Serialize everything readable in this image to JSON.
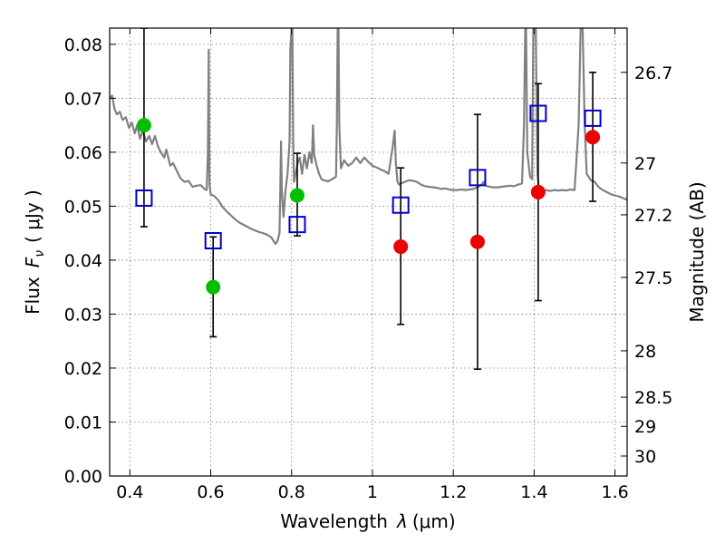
{
  "chart_data": {
    "type": "scatter",
    "title": "",
    "xlabel_prefix": "Wavelength",
    "xlabel_symbol": "λ",
    "xlabel_unit": "(μm)",
    "ylabel_prefix": "Flux",
    "ylabel_symbol": "F",
    "ylabel_subscript": "ν",
    "ylabel_unit": "( μJy )",
    "y2label": "Magnitude (AB)",
    "xlim": [
      0.35,
      1.63
    ],
    "ylim": [
      0.0,
      0.083
    ],
    "grid": true,
    "x_ticks": [
      0.4,
      0.6,
      0.8,
      1.0,
      1.2,
      1.4,
      1.6
    ],
    "x_tick_labels": [
      "0.4",
      "0.6",
      "0.8",
      "1",
      "1.2",
      "1.4",
      "1.6"
    ],
    "y_ticks": [
      0.0,
      0.01,
      0.02,
      0.03,
      0.04,
      0.05,
      0.06,
      0.07,
      0.08
    ],
    "y_tick_labels": [
      "0.00",
      "0.01",
      "0.02",
      "0.03",
      "0.04",
      "0.05",
      "0.06",
      "0.07",
      "0.08"
    ],
    "y2_ticks": [
      {
        "flux": 0.0748,
        "label": "26.7"
      },
      {
        "flux": 0.058,
        "label": "27"
      },
      {
        "flux": 0.0484,
        "label": "27.2"
      },
      {
        "flux": 0.0368,
        "label": "27.5"
      },
      {
        "flux": 0.0232,
        "label": "28"
      },
      {
        "flux": 0.0146,
        "label": "28.5"
      },
      {
        "flux": 0.0092,
        "label": "29"
      },
      {
        "flux": 0.0037,
        "label": "30"
      }
    ],
    "colors": {
      "spectrum": "#808080",
      "observed_green": "#00c000",
      "observed_red": "#ee0000",
      "model_box": "#0000cc",
      "errorbar": "#000000"
    },
    "series": [
      {
        "kind": "observed",
        "points": [
          {
            "x": 0.435,
            "y": 0.065,
            "color": "green",
            "err_low": 0.0462,
            "err_high": 0.083
          },
          {
            "x": 0.606,
            "y": 0.035,
            "color": "green",
            "err_low": 0.0258,
            "err_high": 0.0443
          },
          {
            "x": 0.814,
            "y": 0.052,
            "color": "green",
            "err_low": 0.0445,
            "err_high": 0.0598
          },
          {
            "x": 1.07,
            "y": 0.0425,
            "color": "red",
            "err_low": 0.0281,
            "err_high": 0.0571
          },
          {
            "x": 1.26,
            "y": 0.0434,
            "color": "red",
            "err_low": 0.0198,
            "err_high": 0.067
          },
          {
            "x": 1.41,
            "y": 0.0526,
            "color": "red",
            "err_low": 0.0325,
            "err_high": 0.0727
          },
          {
            "x": 1.545,
            "y": 0.0628,
            "color": "red",
            "err_low": 0.0509,
            "err_high": 0.0748
          }
        ]
      },
      {
        "kind": "model",
        "points": [
          {
            "x": 0.435,
            "y": 0.0515
          },
          {
            "x": 0.606,
            "y": 0.0436
          },
          {
            "x": 0.814,
            "y": 0.0466
          },
          {
            "x": 1.07,
            "y": 0.0502
          },
          {
            "x": 1.26,
            "y": 0.0553
          },
          {
            "x": 1.41,
            "y": 0.0672
          },
          {
            "x": 1.545,
            "y": 0.0663
          }
        ]
      },
      {
        "kind": "spectrum",
        "points": [
          [
            0.35,
            0.07
          ],
          [
            0.356,
            0.0705
          ],
          [
            0.362,
            0.068
          ],
          [
            0.368,
            0.067
          ],
          [
            0.375,
            0.0675
          ],
          [
            0.382,
            0.066
          ],
          [
            0.39,
            0.0665
          ],
          [
            0.398,
            0.0645
          ],
          [
            0.405,
            0.0655
          ],
          [
            0.412,
            0.0635
          ],
          [
            0.418,
            0.065
          ],
          [
            0.425,
            0.0625
          ],
          [
            0.432,
            0.064
          ],
          [
            0.44,
            0.062
          ],
          [
            0.448,
            0.063
          ],
          [
            0.455,
            0.0615
          ],
          [
            0.462,
            0.063
          ],
          [
            0.47,
            0.061
          ],
          [
            0.478,
            0.0598
          ],
          [
            0.485,
            0.059
          ],
          [
            0.49,
            0.0605
          ],
          [
            0.495,
            0.059
          ],
          [
            0.5,
            0.0575
          ],
          [
            0.507,
            0.058
          ],
          [
            0.515,
            0.0567
          ],
          [
            0.525,
            0.0552
          ],
          [
            0.535,
            0.0545
          ],
          [
            0.545,
            0.0547
          ],
          [
            0.555,
            0.0536
          ],
          [
            0.565,
            0.0538
          ],
          [
            0.575,
            0.0539
          ],
          [
            0.585,
            0.0532
          ],
          [
            0.59,
            0.053
          ],
          [
            0.593,
            0.06
          ],
          [
            0.595,
            0.079
          ],
          [
            0.597,
            0.054
          ],
          [
            0.6,
            0.0522
          ],
          [
            0.61,
            0.0518
          ],
          [
            0.62,
            0.051
          ],
          [
            0.63,
            0.0498
          ],
          [
            0.64,
            0.049
          ],
          [
            0.65,
            0.0483
          ],
          [
            0.66,
            0.0476
          ],
          [
            0.67,
            0.047
          ],
          [
            0.68,
            0.0466
          ],
          [
            0.69,
            0.0462
          ],
          [
            0.7,
            0.0458
          ],
          [
            0.71,
            0.0455
          ],
          [
            0.72,
            0.0452
          ],
          [
            0.73,
            0.045
          ],
          [
            0.74,
            0.0447
          ],
          [
            0.75,
            0.0442
          ],
          [
            0.76,
            0.043
          ],
          [
            0.765,
            0.0435
          ],
          [
            0.77,
            0.045
          ],
          [
            0.772,
            0.053
          ],
          [
            0.774,
            0.062
          ],
          [
            0.776,
            0.053
          ],
          [
            0.78,
            0.048
          ],
          [
            0.785,
            0.053
          ],
          [
            0.79,
            0.056
          ],
          [
            0.795,
            0.062
          ],
          [
            0.797,
            0.079
          ],
          [
            0.8,
            0.083
          ],
          [
            0.802,
            0.083
          ],
          [
            0.804,
            0.062
          ],
          [
            0.806,
            0.0545
          ],
          [
            0.81,
            0.056
          ],
          [
            0.815,
            0.058
          ],
          [
            0.82,
            0.059
          ],
          [
            0.826,
            0.056
          ],
          [
            0.832,
            0.0595
          ],
          [
            0.838,
            0.057
          ],
          [
            0.844,
            0.06
          ],
          [
            0.85,
            0.058
          ],
          [
            0.853,
            0.065
          ],
          [
            0.856,
            0.0595
          ],
          [
            0.862,
            0.0575
          ],
          [
            0.868,
            0.056
          ],
          [
            0.874,
            0.055
          ],
          [
            0.88,
            0.0548
          ],
          [
            0.89,
            0.0546
          ],
          [
            0.9,
            0.055
          ],
          [
            0.91,
            0.0555
          ],
          [
            0.912,
            0.065
          ],
          [
            0.914,
            0.083
          ],
          [
            0.916,
            0.083
          ],
          [
            0.918,
            0.065
          ],
          [
            0.922,
            0.057
          ],
          [
            0.93,
            0.0585
          ],
          [
            0.94,
            0.0575
          ],
          [
            0.95,
            0.058
          ],
          [
            0.96,
            0.059
          ],
          [
            0.97,
            0.058
          ],
          [
            0.98,
            0.059
          ],
          [
            0.99,
            0.0582
          ],
          [
            1.0,
            0.0575
          ],
          [
            1.01,
            0.0572
          ],
          [
            1.02,
            0.0568
          ],
          [
            1.03,
            0.0565
          ],
          [
            1.04,
            0.056
          ],
          [
            1.05,
            0.061
          ],
          [
            1.055,
            0.064
          ],
          [
            1.058,
            0.058
          ],
          [
            1.062,
            0.0545
          ],
          [
            1.066,
            0.054
          ],
          [
            1.07,
            0.0542
          ],
          [
            1.08,
            0.0545
          ],
          [
            1.09,
            0.0548
          ],
          [
            1.1,
            0.0547
          ],
          [
            1.11,
            0.0545
          ],
          [
            1.12,
            0.054
          ],
          [
            1.13,
            0.0537
          ],
          [
            1.14,
            0.0536
          ],
          [
            1.15,
            0.0535
          ],
          [
            1.16,
            0.0534
          ],
          [
            1.17,
            0.0532
          ],
          [
            1.18,
            0.0533
          ],
          [
            1.19,
            0.0531
          ],
          [
            1.2,
            0.053
          ],
          [
            1.21,
            0.053
          ],
          [
            1.22,
            0.0531
          ],
          [
            1.23,
            0.053
          ],
          [
            1.24,
            0.0531
          ],
          [
            1.25,
            0.0532
          ],
          [
            1.26,
            0.0535
          ],
          [
            1.27,
            0.054
          ],
          [
            1.275,
            0.0545
          ],
          [
            1.28,
            0.0538
          ],
          [
            1.29,
            0.0536
          ],
          [
            1.3,
            0.0535
          ],
          [
            1.31,
            0.0535
          ],
          [
            1.32,
            0.0536
          ],
          [
            1.33,
            0.0537
          ],
          [
            1.34,
            0.0538
          ],
          [
            1.35,
            0.0537
          ],
          [
            1.36,
            0.054
          ],
          [
            1.37,
            0.0542
          ],
          [
            1.375,
            0.065
          ],
          [
            1.378,
            0.083
          ],
          [
            1.38,
            0.083
          ],
          [
            1.383,
            0.06
          ],
          [
            1.39,
            0.0555
          ],
          [
            1.395,
            0.055
          ],
          [
            1.398,
            0.083
          ],
          [
            1.404,
            0.083
          ],
          [
            1.408,
            0.056
          ],
          [
            1.412,
            0.053
          ],
          [
            1.42,
            0.0528
          ],
          [
            1.43,
            0.053
          ],
          [
            1.44,
            0.0528
          ],
          [
            1.45,
            0.053
          ],
          [
            1.46,
            0.0529
          ],
          [
            1.47,
            0.053
          ],
          [
            1.48,
            0.0529
          ],
          [
            1.49,
            0.0531
          ],
          [
            1.5,
            0.053
          ],
          [
            1.51,
            0.065
          ],
          [
            1.515,
            0.083
          ],
          [
            1.52,
            0.083
          ],
          [
            1.525,
            0.065
          ],
          [
            1.53,
            0.056
          ],
          [
            1.54,
            0.0548
          ],
          [
            1.55,
            0.0545
          ],
          [
            1.56,
            0.0535
          ],
          [
            1.57,
            0.053
          ],
          [
            1.58,
            0.0526
          ],
          [
            1.59,
            0.0522
          ],
          [
            1.6,
            0.052
          ],
          [
            1.61,
            0.0518
          ],
          [
            1.62,
            0.0515
          ],
          [
            1.63,
            0.0512
          ]
        ]
      }
    ]
  }
}
